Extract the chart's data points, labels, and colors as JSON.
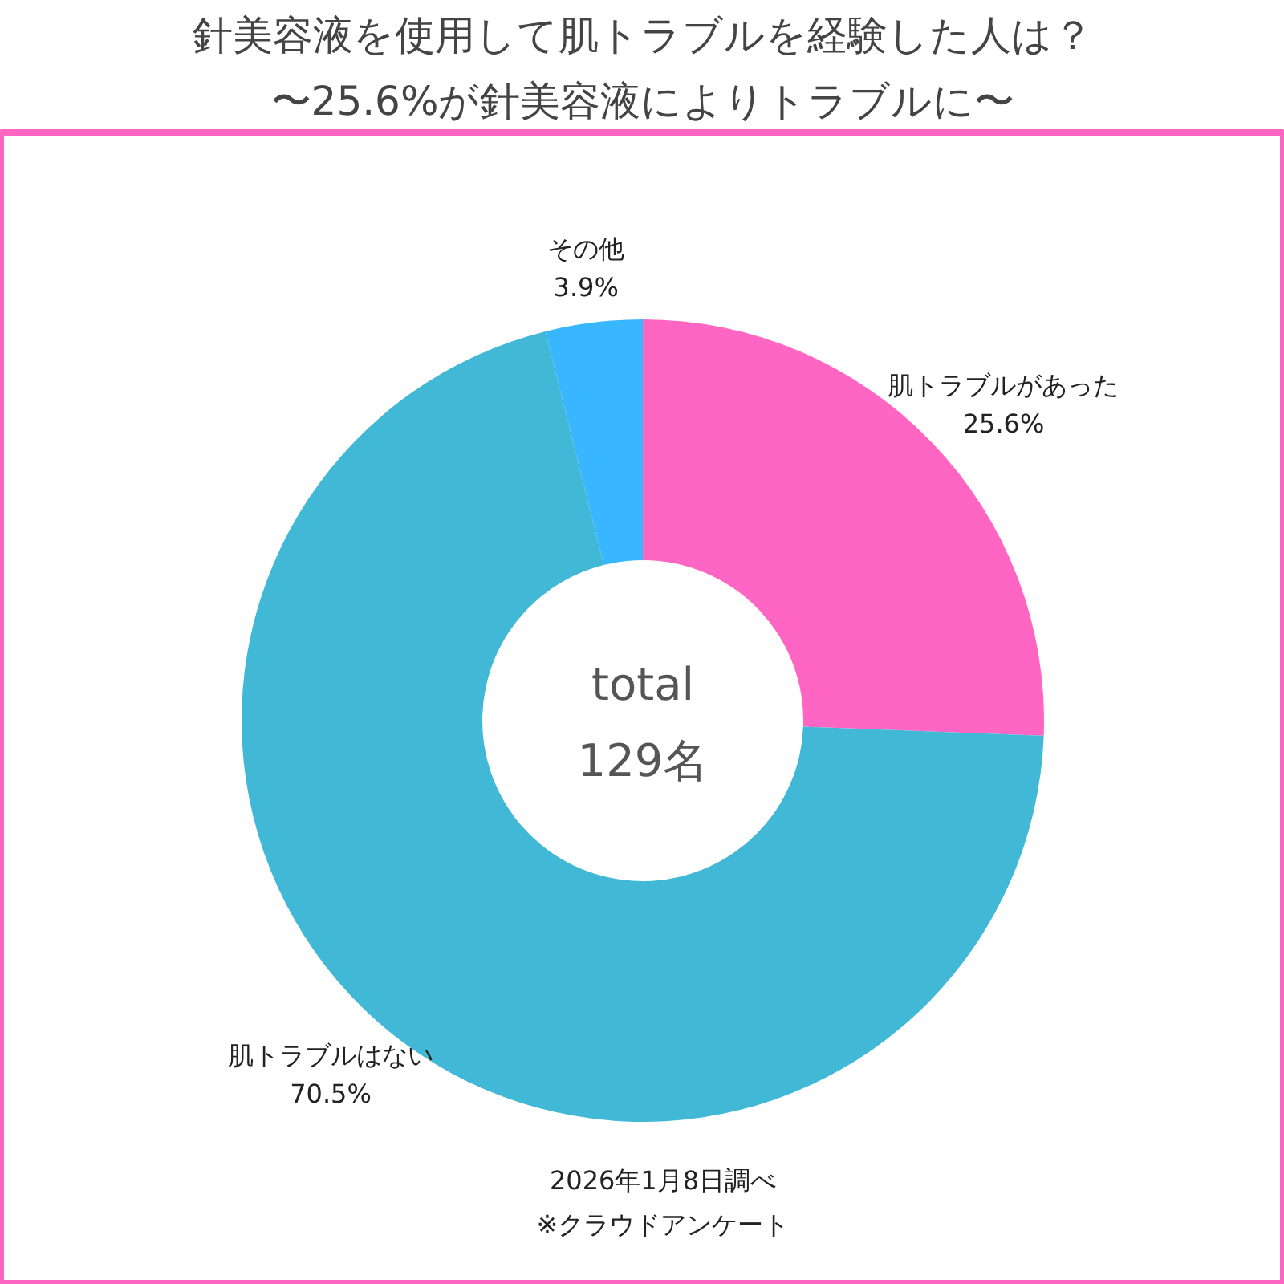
{
  "chart_data": {
    "type": "donut",
    "title": "針美容液を使用して肌トラブルを経験した人は？",
    "subtitle": "〜25.6%が針美容液によりトラブルに〜",
    "categories": [
      "肌トラブルがあった",
      "肌トラブルはない",
      "その他"
    ],
    "values": [
      25.6,
      70.5,
      3.9
    ],
    "value_labels": [
      "25.6%",
      "70.5%",
      "3.9%"
    ],
    "colors": [
      "#ff66c4",
      "#40b8d6",
      "#38b6ff"
    ],
    "annotations": [
      "total",
      "129名",
      "2026年1月8日調べ",
      "※クラウドアンケート"
    ]
  }
}
